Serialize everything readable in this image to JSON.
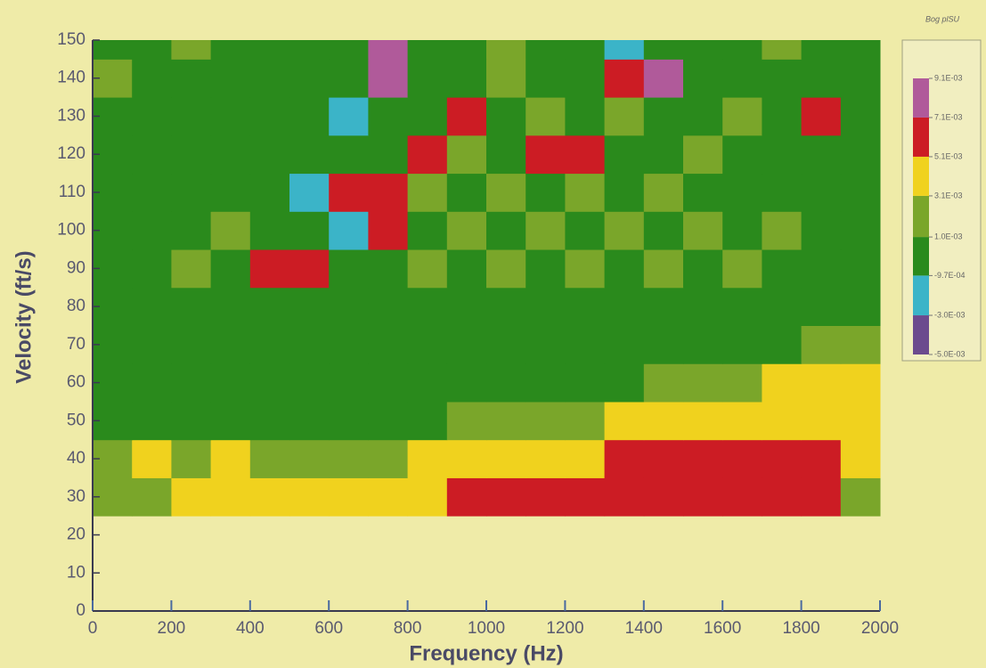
{
  "chart_data": {
    "type": "heatmap",
    "x_label": "Frequency (Hz)",
    "y_label": "Velocity (ft/s)",
    "xlim": [
      0,
      2000
    ],
    "xticks": [
      0,
      200,
      400,
      600,
      800,
      1000,
      1200,
      1400,
      1600,
      1800,
      2000
    ],
    "ylim": [
      0,
      150
    ],
    "yticks": [
      0,
      10,
      20,
      30,
      40,
      50,
      60,
      70,
      80,
      90,
      100,
      110,
      120,
      130,
      140,
      150
    ],
    "x_bins": [
      0,
      100,
      200,
      300,
      400,
      500,
      600,
      700,
      800,
      900,
      1000,
      1100,
      1200,
      1300,
      1400,
      1500,
      1600,
      1700,
      1800,
      1900,
      2000
    ],
    "y_bins": [
      25,
      35,
      45,
      55,
      65,
      75,
      85,
      95,
      105,
      115,
      125,
      135,
      145,
      150
    ],
    "z": [
      [
        0.002,
        0.002,
        0.004,
        0.004,
        0.004,
        0.004,
        0.004,
        0.004,
        0.004,
        0.006,
        0.006,
        0.006,
        0.006,
        0.006,
        0.006,
        0.006,
        0.006,
        0.006,
        0.006,
        0.002
      ],
      [
        0.002,
        0.004,
        0.002,
        0.004,
        0.002,
        0.002,
        0.002,
        0.002,
        0.004,
        0.004,
        0.004,
        0.004,
        0.004,
        0.006,
        0.006,
        0.006,
        0.006,
        0.006,
        0.006,
        0.004
      ],
      [
        0,
        0,
        0,
        0,
        0,
        0,
        0,
        0,
        0,
        0.002,
        0.002,
        0.002,
        0.002,
        0.004,
        0.004,
        0.004,
        0.004,
        0.004,
        0.004,
        0.004
      ],
      [
        0,
        0,
        0,
        0,
        0,
        0,
        0,
        0,
        0,
        0,
        0,
        0,
        0,
        0,
        0.002,
        0.002,
        0.002,
        0.004,
        0.004,
        0.004
      ],
      [
        0,
        0,
        0,
        0,
        0,
        0,
        0,
        0,
        0,
        0,
        0,
        0,
        0,
        0,
        0,
        0,
        0,
        0,
        0.002,
        0.002
      ],
      [
        0,
        0,
        0,
        0,
        0,
        0,
        0,
        0,
        0,
        0,
        0,
        0,
        0,
        0,
        0,
        0,
        0,
        0,
        0,
        0
      ],
      [
        0,
        0,
        0.002,
        0,
        0.006,
        0.006,
        0,
        0,
        0.002,
        0,
        0.002,
        0,
        0.002,
        0,
        0.002,
        0,
        0.002,
        0,
        0,
        0
      ],
      [
        0,
        0,
        0,
        0.002,
        0,
        0,
        -0.002,
        0.006,
        0,
        0.002,
        0,
        0.002,
        0,
        0.002,
        0,
        0.002,
        0,
        0.002,
        0,
        0
      ],
      [
        0,
        0,
        0,
        0,
        0,
        -0.002,
        0.006,
        0.006,
        0.002,
        0,
        0.002,
        0,
        0.002,
        0,
        0.002,
        0,
        0,
        0,
        0,
        0
      ],
      [
        0,
        0,
        0,
        0,
        0,
        0,
        0,
        0,
        0.006,
        0.002,
        0,
        0.006,
        0.006,
        0,
        0,
        0.002,
        0,
        0,
        0,
        0
      ],
      [
        0,
        0,
        0,
        0,
        0,
        0,
        -0.002,
        0,
        0,
        0.006,
        0,
        0.002,
        0,
        0.002,
        0,
        0,
        0.002,
        0,
        0.006,
        0
      ],
      [
        0.002,
        0,
        0,
        0,
        0,
        0,
        0,
        0.008,
        0,
        0,
        0.002,
        0,
        0,
        0.006,
        0.008,
        0,
        0,
        0,
        0,
        0
      ],
      [
        0,
        0,
        0.002,
        0,
        0,
        0,
        0,
        0.008,
        0,
        0,
        0.002,
        0,
        0,
        -0.002,
        0,
        0,
        0,
        0.002,
        0,
        0
      ]
    ],
    "colorbar": {
      "title": "Bog plSU",
      "ticks": [
        {
          "value": -0.005,
          "label": "-5.0E-03"
        },
        {
          "value": -0.003,
          "label": "-3.0E-03"
        },
        {
          "value": -0.00097,
          "label": "-9.7E-04"
        },
        {
          "value": 0.001,
          "label": "1.0E-03"
        },
        {
          "value": 0.0031,
          "label": "3.1E-03"
        },
        {
          "value": 0.0051,
          "label": "5.1E-03"
        },
        {
          "value": 0.0071,
          "label": "7.1E-03"
        },
        {
          "value": 0.0091,
          "label": "9.1E-03"
        }
      ],
      "colors": [
        "#6b4a8e",
        "#3bb4c8",
        "#2a8a1c",
        "#7aa62a",
        "#f0d21e",
        "#cc1c24",
        "#b05a9a"
      ]
    }
  }
}
